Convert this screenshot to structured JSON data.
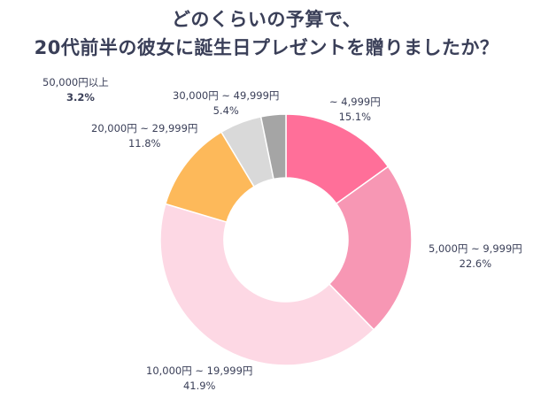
{
  "title_line1": "どのくらいの予算で、",
  "title_line2": "20代前半の彼女に誕生日プレゼントを贈りましたか？",
  "chart_data": {
    "type": "pie",
    "variant": "donut",
    "title": "どのくらいの予算で、20代前半の彼女に誕生日プレゼントを贈りましたか？",
    "slices": [
      {
        "label": "~ 4,999円",
        "pct_label": "15.1%",
        "value": 15.1,
        "color": "#ff6f99"
      },
      {
        "label": "5,000円 ~ 9,999円",
        "pct_label": "22.6%",
        "value": 22.6,
        "color": "#f797b4"
      },
      {
        "label": "10,000円 ~ 19,999円",
        "pct_label": "41.9%",
        "value": 41.9,
        "color": "#fdd8e4"
      },
      {
        "label": "20,000円 ~ 29,999円",
        "pct_label": "11.8%",
        "value": 11.8,
        "color": "#fdb95a"
      },
      {
        "label": "30,000円 ~ 49,999円",
        "pct_label": "5.4%",
        "value": 5.4,
        "color": "#d9d9d9"
      },
      {
        "label": "50,000円以上",
        "pct_label": "3.2%",
        "value": 3.2,
        "color": "#a5a5a5"
      }
    ]
  }
}
